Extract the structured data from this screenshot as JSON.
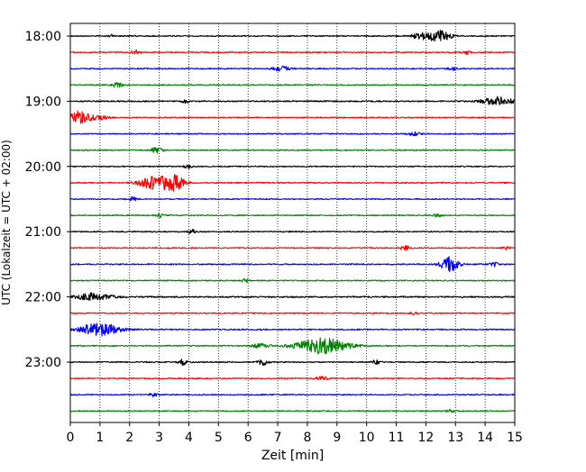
{
  "chart_data": {
    "type": "line",
    "title": "",
    "xlabel": "Zeit  [min]",
    "ylabel": "UTC (Lokalzeit = UTC + 02:00)",
    "xlim": [
      0,
      15
    ],
    "x_ticks": [
      "0",
      "1",
      "2",
      "3",
      "4",
      "5",
      "6",
      "7",
      "8",
      "9",
      "10",
      "11",
      "12",
      "13",
      "14",
      "15"
    ],
    "y_tick_labels": [
      "18:00",
      "19:00",
      "20:00",
      "21:00",
      "22:00",
      "23:00"
    ],
    "grid": "vertical dotted lines every minute",
    "trace_colors": [
      "#000000",
      "#ff0000",
      "#0000ff",
      "#008000"
    ],
    "traces": [
      {
        "start": "18:00",
        "color": "#000000",
        "amplitude": 0.07,
        "events": [
          {
            "x": 12.1,
            "amplitude": 0.55,
            "width": 0.35
          },
          {
            "x": 12.6,
            "amplitude": 0.45,
            "width": 0.2
          },
          {
            "x": 1.4,
            "amplitude": 0.18,
            "width": 0.05
          }
        ]
      },
      {
        "start": "18:15",
        "color": "#ff0000",
        "amplitude": 0.07,
        "events": [
          {
            "x": 2.2,
            "amplitude": 0.25,
            "width": 0.1
          },
          {
            "x": 13.4,
            "amplitude": 0.22,
            "width": 0.1
          }
        ]
      },
      {
        "start": "18:30",
        "color": "#0000ff",
        "amplitude": 0.07,
        "events": [
          {
            "x": 7.1,
            "amplitude": 0.3,
            "width": 0.2
          },
          {
            "x": 12.9,
            "amplitude": 0.2,
            "width": 0.1
          }
        ]
      },
      {
        "start": "18:45",
        "color": "#008000",
        "amplitude": 0.07,
        "events": [
          {
            "x": 1.6,
            "amplitude": 0.25,
            "width": 0.15
          }
        ]
      },
      {
        "start": "19:00",
        "color": "#000000",
        "amplitude": 0.08,
        "events": [
          {
            "x": 14.4,
            "amplitude": 0.55,
            "width": 0.35
          },
          {
            "x": 3.9,
            "amplitude": 0.2,
            "width": 0.1
          }
        ]
      },
      {
        "start": "19:15",
        "color": "#ff0000",
        "amplitude": 0.07,
        "events": [
          {
            "x": 0.3,
            "amplitude": 0.8,
            "width": 0.25
          },
          {
            "x": 1.0,
            "amplitude": 0.25,
            "width": 0.2
          }
        ]
      },
      {
        "start": "19:30",
        "color": "#0000ff",
        "amplitude": 0.07,
        "events": [
          {
            "x": 11.6,
            "amplitude": 0.25,
            "width": 0.15
          }
        ]
      },
      {
        "start": "19:45",
        "color": "#008000",
        "amplitude": 0.07,
        "events": [
          {
            "x": 2.9,
            "amplitude": 0.3,
            "width": 0.15
          }
        ]
      },
      {
        "start": "20:00",
        "color": "#000000",
        "amplitude": 0.07,
        "events": [
          {
            "x": 4.0,
            "amplitude": 0.22,
            "width": 0.12
          }
        ]
      },
      {
        "start": "20:15",
        "color": "#ff0000",
        "amplitude": 0.07,
        "events": [
          {
            "x": 2.8,
            "amplitude": 0.75,
            "width": 0.35
          },
          {
            "x": 3.5,
            "amplitude": 0.9,
            "width": 0.25
          }
        ]
      },
      {
        "start": "20:30",
        "color": "#0000ff",
        "amplitude": 0.07,
        "events": [
          {
            "x": 2.1,
            "amplitude": 0.22,
            "width": 0.1
          }
        ]
      },
      {
        "start": "20:45",
        "color": "#008000",
        "amplitude": 0.07,
        "events": [
          {
            "x": 3.0,
            "amplitude": 0.22,
            "width": 0.1
          },
          {
            "x": 12.4,
            "amplitude": 0.2,
            "width": 0.1
          }
        ]
      },
      {
        "start": "21:00",
        "color": "#000000",
        "amplitude": 0.07,
        "events": [
          {
            "x": 4.1,
            "amplitude": 0.25,
            "width": 0.1
          }
        ]
      },
      {
        "start": "21:15",
        "color": "#ff0000",
        "amplitude": 0.07,
        "events": [
          {
            "x": 11.3,
            "amplitude": 0.3,
            "width": 0.1
          },
          {
            "x": 14.7,
            "amplitude": 0.2,
            "width": 0.1
          }
        ]
      },
      {
        "start": "21:30",
        "color": "#0000ff",
        "amplitude": 0.08,
        "events": [
          {
            "x": 12.8,
            "amplitude": 0.95,
            "width": 0.2
          },
          {
            "x": 14.3,
            "amplitude": 0.25,
            "width": 0.1
          }
        ]
      },
      {
        "start": "21:45",
        "color": "#008000",
        "amplitude": 0.07,
        "events": [
          {
            "x": 5.9,
            "amplitude": 0.2,
            "width": 0.1
          }
        ]
      },
      {
        "start": "22:00",
        "color": "#000000",
        "amplitude": 0.09,
        "events": [
          {
            "x": 0.8,
            "amplitude": 0.45,
            "width": 0.4
          }
        ]
      },
      {
        "start": "22:15",
        "color": "#ff0000",
        "amplitude": 0.07,
        "events": [
          {
            "x": 11.6,
            "amplitude": 0.18,
            "width": 0.1
          }
        ]
      },
      {
        "start": "22:30",
        "color": "#0000ff",
        "amplitude": 0.08,
        "events": [
          {
            "x": 1.0,
            "amplitude": 0.85,
            "width": 0.45
          }
        ]
      },
      {
        "start": "22:45",
        "color": "#008000",
        "amplitude": 0.07,
        "events": [
          {
            "x": 8.5,
            "amplitude": 0.95,
            "width": 0.6
          },
          {
            "x": 6.4,
            "amplitude": 0.25,
            "width": 0.2
          }
        ]
      },
      {
        "start": "23:00",
        "color": "#000000",
        "amplitude": 0.07,
        "events": [
          {
            "x": 3.8,
            "amplitude": 0.35,
            "width": 0.1
          },
          {
            "x": 6.5,
            "amplitude": 0.35,
            "width": 0.12
          },
          {
            "x": 10.3,
            "amplitude": 0.3,
            "width": 0.1
          }
        ]
      },
      {
        "start": "23:15",
        "color": "#ff0000",
        "amplitude": 0.07,
        "events": [
          {
            "x": 8.5,
            "amplitude": 0.2,
            "width": 0.15
          }
        ]
      },
      {
        "start": "23:30",
        "color": "#0000ff",
        "amplitude": 0.07,
        "events": [
          {
            "x": 2.8,
            "amplitude": 0.18,
            "width": 0.1
          }
        ]
      },
      {
        "start": "23:45",
        "color": "#008000",
        "amplitude": 0.07,
        "events": [
          {
            "x": 12.8,
            "amplitude": 0.18,
            "width": 0.1
          }
        ]
      }
    ]
  }
}
